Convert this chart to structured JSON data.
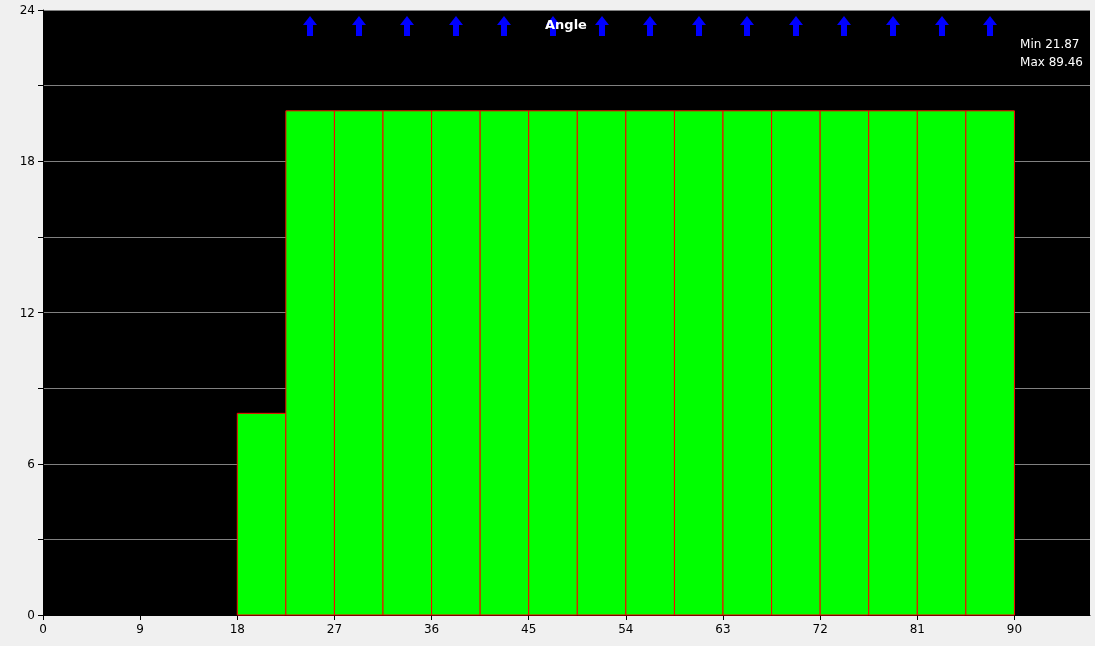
{
  "chart_data": {
    "type": "histogram",
    "title": "Angle",
    "bins": [
      18,
      22.5,
      27,
      31.5,
      36,
      40.5,
      45,
      49.5,
      54,
      58.5,
      63,
      67.5,
      72,
      76.5,
      81,
      85.5,
      90
    ],
    "values": [
      8,
      20,
      20,
      20,
      20,
      20,
      20,
      20,
      20,
      20,
      20,
      20,
      20,
      20,
      20,
      20
    ],
    "color": "#00ff00",
    "annotations": [
      "Min 21.87",
      "Max 89.46"
    ],
    "xlim": [
      0,
      97
    ],
    "xticks": [
      0,
      9,
      18,
      27,
      36,
      45,
      54,
      63,
      72,
      81,
      90
    ],
    "ylim": [
      0,
      24
    ],
    "yticks": [
      0,
      {
        "value": 3,
        "label": null
      },
      6,
      {
        "value": 9,
        "label": null
      },
      12,
      {
        "value": 15,
        "label": null
      },
      18,
      {
        "value": 21,
        "label": null
      },
      24
    ],
    "grid": "y"
  }
}
